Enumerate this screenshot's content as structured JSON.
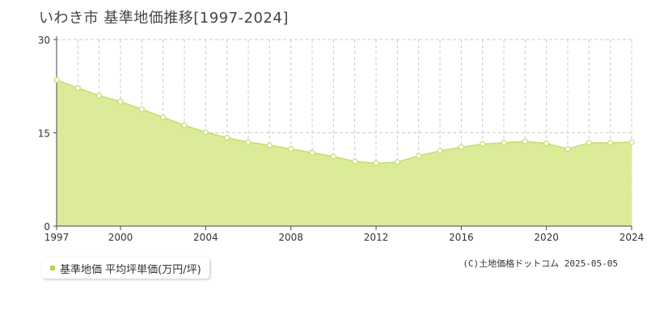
{
  "colors": {
    "fill": "#dbeb98",
    "line": "#c5dd6b",
    "marker_fill": "#ffffff",
    "grid": "#cccccc",
    "legend_swatch": "#b4d64b"
  },
  "credit": "(C)土地価格ドットコム 2025-05-05",
  "chart_data": {
    "type": "area",
    "title": "いわき市 基準地価推移[1997-2024]",
    "xlabel": "",
    "ylabel": "",
    "xlim": [
      1997,
      2024
    ],
    "ylim": [
      0,
      30
    ],
    "yticks": [
      0,
      15,
      30
    ],
    "xticks": [
      1997,
      2000,
      2004,
      2008,
      2012,
      2016,
      2020,
      2024
    ],
    "grid": true,
    "legend_position": "bottom-left",
    "series": [
      {
        "name": "基準地価 平均坪単価(万円/坪)",
        "x": [
          1997,
          1998,
          1999,
          2000,
          2001,
          2002,
          2003,
          2004,
          2005,
          2006,
          2007,
          2008,
          2009,
          2010,
          2011,
          2012,
          2013,
          2014,
          2015,
          2016,
          2017,
          2018,
          2019,
          2020,
          2021,
          2022,
          2023,
          2024
        ],
        "values": [
          23.5,
          22.2,
          21.0,
          20.0,
          18.8,
          17.5,
          16.2,
          15.1,
          14.2,
          13.5,
          13.0,
          12.4,
          11.8,
          11.2,
          10.4,
          10.1,
          10.3,
          11.3,
          12.1,
          12.7,
          13.2,
          13.4,
          13.6,
          13.3,
          12.4,
          13.4,
          13.4,
          13.5
        ]
      }
    ]
  }
}
